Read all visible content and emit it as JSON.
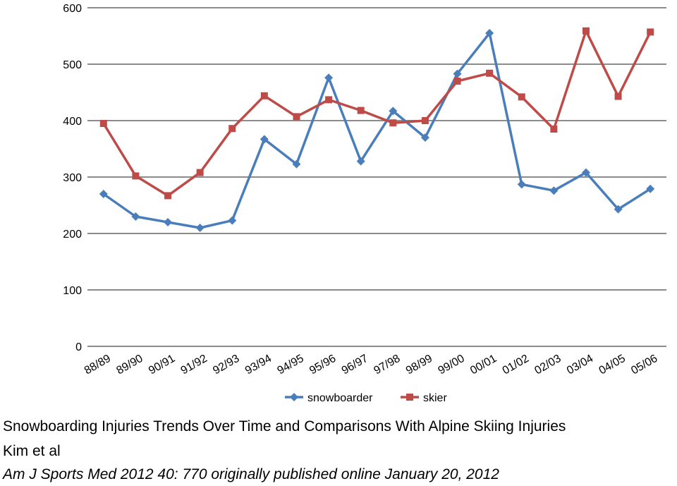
{
  "chart_data": {
    "type": "line",
    "categories": [
      "88/89",
      "89/90",
      "90/91",
      "91/92",
      "92/93",
      "93/94",
      "94/95",
      "95/96",
      "96/97",
      "97/98",
      "98/99",
      "99/00",
      "00/01",
      "01/02",
      "02/03",
      "03/04",
      "04/05",
      "05/06"
    ],
    "series": [
      {
        "name": "snowboarder",
        "color": "#4a7ebb",
        "marker": "diamond",
        "values": [
          270,
          230,
          220,
          210,
          223,
          367,
          323,
          476,
          328,
          417,
          370,
          483,
          555,
          287,
          276,
          308,
          243,
          279
        ]
      },
      {
        "name": "skier",
        "color": "#be4b48",
        "marker": "square",
        "values": [
          395,
          302,
          267,
          308,
          386,
          444,
          407,
          437,
          418,
          396,
          400,
          470,
          484,
          442,
          385,
          559,
          443,
          557
        ]
      }
    ],
    "y_ticks": [
      "0",
      "100",
      "200",
      "300",
      "400",
      "500",
      "600"
    ],
    "ylim": [
      0,
      600
    ],
    "grid": "horizontal",
    "legend_position": "bottom",
    "title": "",
    "xlabel": "",
    "ylabel": ""
  },
  "caption": {
    "title": "Snowboarding Injuries Trends Over Time and Comparisons With Alpine Skiing Injuries",
    "authors": "Kim et al",
    "citation": "Am J Sports Med 2012 40: 770 originally published online January 20, 2012"
  }
}
